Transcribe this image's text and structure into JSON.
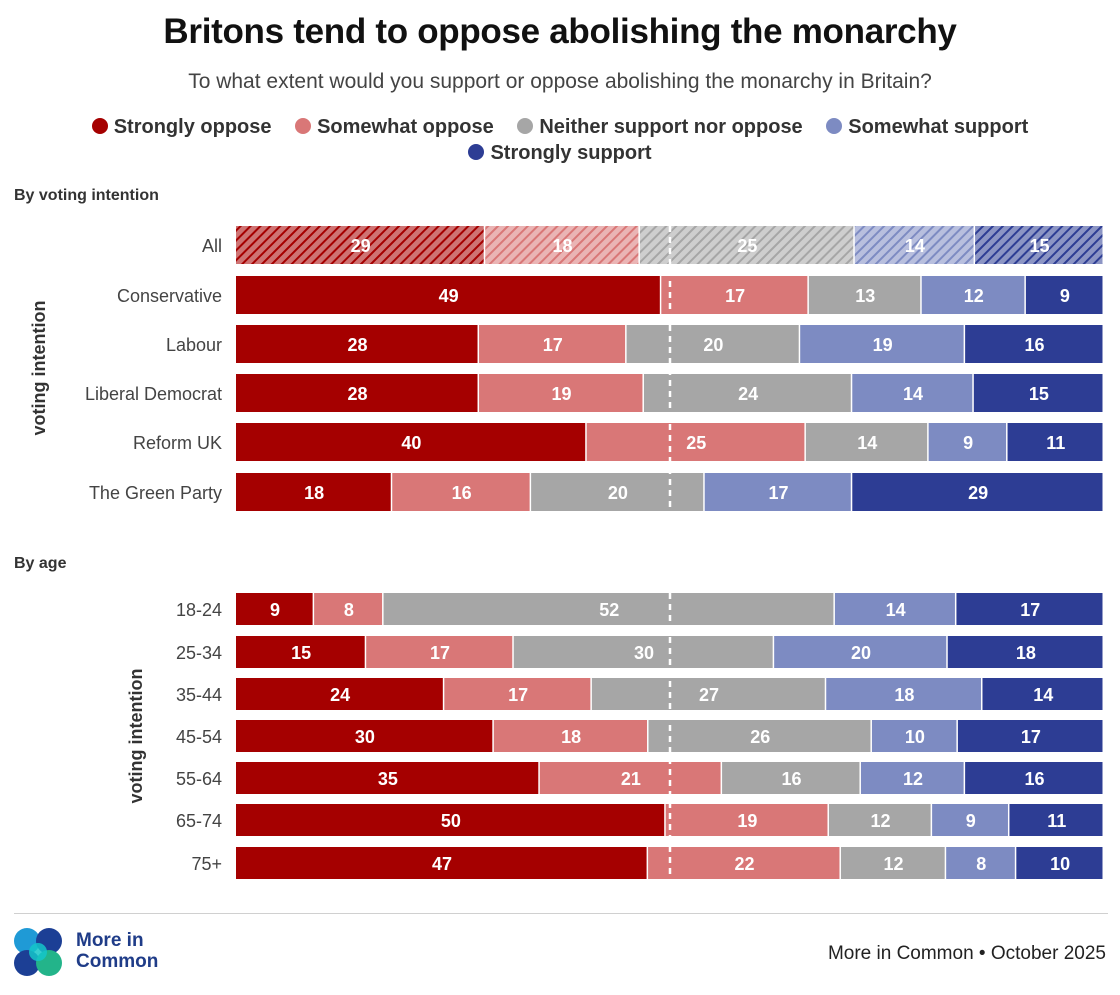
{
  "title": "Britons tend to oppose abolishing the monarchy",
  "subtitle": "To what extent would you support or oppose abolishing the monarchy in Britain?",
  "legend": [
    {
      "label": "Strongly oppose",
      "color": "#a50000"
    },
    {
      "label": "Somewhat oppose",
      "color": "#d97777"
    },
    {
      "label": "Neither support nor oppose",
      "color": "#a6a6a6"
    },
    {
      "label": "Somewhat support",
      "color": "#7d8bc2"
    },
    {
      "label": "Strongly support",
      "color": "#2d3d94"
    }
  ],
  "sections": {
    "voting": {
      "label": "By voting intention",
      "axis_label": "voting intention"
    },
    "age": {
      "label": "By age",
      "axis_label": "voting intention"
    }
  },
  "footer": {
    "logo_line1": "More in",
    "logo_line2": "Common",
    "source": "More in Common • October 2025"
  },
  "chart_data": [
    {
      "type": "bar",
      "stacked": true,
      "orientation": "horizontal",
      "title": "By voting intention",
      "ylabel": "voting intention",
      "midpoint_marker": 50,
      "categories": [
        "All",
        "Conservative",
        "Labour",
        "Liberal Democrat",
        "Reform UK",
        "The Green Party"
      ],
      "highlighted_category": "All",
      "series": [
        {
          "name": "Strongly oppose",
          "values": [
            29,
            49,
            28,
            28,
            40,
            18
          ]
        },
        {
          "name": "Somewhat oppose",
          "values": [
            18,
            17,
            17,
            19,
            25,
            16
          ]
        },
        {
          "name": "Neither support nor oppose",
          "values": [
            25,
            13,
            20,
            24,
            14,
            20
          ]
        },
        {
          "name": "Somewhat support",
          "values": [
            14,
            12,
            19,
            14,
            9,
            17
          ]
        },
        {
          "name": "Strongly support",
          "values": [
            15,
            9,
            16,
            15,
            11,
            29
          ]
        }
      ]
    },
    {
      "type": "bar",
      "stacked": true,
      "orientation": "horizontal",
      "title": "By age",
      "ylabel": "voting intention",
      "midpoint_marker": 50,
      "categories": [
        "18-24",
        "25-34",
        "35-44",
        "45-54",
        "55-64",
        "65-74",
        "75+"
      ],
      "series": [
        {
          "name": "Strongly oppose",
          "values": [
            9,
            15,
            24,
            30,
            35,
            50,
            47
          ]
        },
        {
          "name": "Somewhat oppose",
          "values": [
            8,
            17,
            17,
            18,
            21,
            19,
            22
          ]
        },
        {
          "name": "Neither support nor oppose",
          "values": [
            52,
            30,
            27,
            26,
            16,
            12,
            12
          ]
        },
        {
          "name": "Somewhat support",
          "values": [
            14,
            20,
            18,
            10,
            12,
            9,
            8
          ]
        },
        {
          "name": "Strongly support",
          "values": [
            17,
            18,
            14,
            17,
            16,
            11,
            10
          ]
        }
      ]
    }
  ]
}
